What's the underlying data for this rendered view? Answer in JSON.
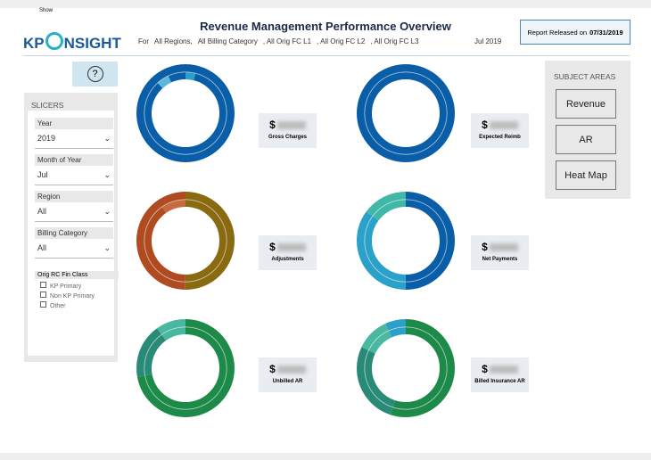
{
  "menu": "Show",
  "header": {
    "title": "Revenue Management Performance Overview",
    "logo_a": "KP",
    "logo_b": "NSIGHT",
    "filters": [
      "For",
      "All Regions,",
      "All Billing Category",
      ", All Orig FC L1",
      ", All Orig FC L2",
      ", All Orig FC L3"
    ],
    "period": "Jul 2019",
    "released_label": "Report Released on",
    "released_date": "07/31/2019"
  },
  "help": "?",
  "slicers": {
    "title": "SLICERS",
    "dropdowns": [
      {
        "label": "Year",
        "value": "2019"
      },
      {
        "label": "Month of Year",
        "value": "Jul"
      },
      {
        "label": "Region",
        "value": "All"
      },
      {
        "label": "Billing Category",
        "value": "All"
      }
    ],
    "list_title": "Orig RC Fin Class",
    "list": [
      "KP Primary",
      "Non KP Primary",
      "Other"
    ]
  },
  "subject_areas": {
    "title": "SUBJECT AREAS",
    "buttons": [
      "Revenue",
      "AR",
      "Heat Map"
    ]
  },
  "cards": [
    {
      "currency": "$",
      "label": "Gross Charges"
    },
    {
      "currency": "$",
      "label": "Expected Reimb"
    },
    {
      "currency": "$",
      "label": "Adjustments"
    },
    {
      "currency": "$",
      "label": "Net Payments"
    },
    {
      "currency": "$",
      "label": "Unbilled AR"
    },
    {
      "currency": "$",
      "label": "Billed Insurance AR"
    }
  ]
}
